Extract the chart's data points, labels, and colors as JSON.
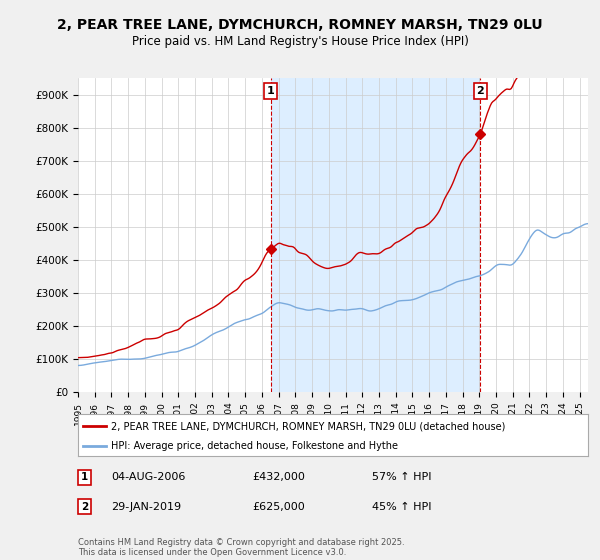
{
  "title_line1": "2, PEAR TREE LANE, DYMCHURCH, ROMNEY MARSH, TN29 0LU",
  "title_line2": "Price paid vs. HM Land Registry's House Price Index (HPI)",
  "bg_color": "#f0f0f0",
  "plot_bg_color": "#ffffff",
  "shade_color": "#ddeeff",
  "red_color": "#cc0000",
  "blue_color": "#7aaadd",
  "marker1_date_str": "04-AUG-2006",
  "marker1_price_str": "£432,000",
  "marker1_pct": "57% ↑ HPI",
  "marker2_date_str": "29-JAN-2019",
  "marker2_price_str": "£625,000",
  "marker2_pct": "45% ↑ HPI",
  "legend_line1": "2, PEAR TREE LANE, DYMCHURCH, ROMNEY MARSH, TN29 0LU (detached house)",
  "legend_line2": "HPI: Average price, detached house, Folkestone and Hythe",
  "footer": "Contains HM Land Registry data © Crown copyright and database right 2025.\nThis data is licensed under the Open Government Licence v3.0.",
  "ylim_max": 950000,
  "yticks": [
    0,
    100000,
    200000,
    300000,
    400000,
    500000,
    600000,
    700000,
    800000,
    900000
  ],
  "ytick_labels": [
    "£0",
    "£100K",
    "£200K",
    "£300K",
    "£400K",
    "£500K",
    "£600K",
    "£700K",
    "£800K",
    "£900K"
  ],
  "xmin": 1995,
  "xmax": 2025.5
}
